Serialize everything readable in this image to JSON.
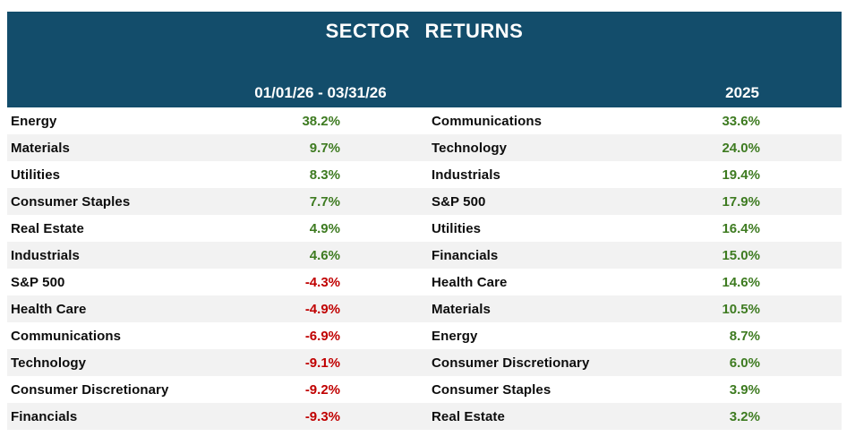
{
  "title": "SECTOR RETURNS",
  "colors": {
    "header_bg": "#134D6B",
    "header_text": "#FFFFFF",
    "positive": "#3E7B21",
    "negative": "#C00000",
    "row_alt": "#F2F2F2",
    "sector_text": "#0D0D0D",
    "page_bg": "#FFFFFF"
  },
  "columns": [
    {
      "period_label": "01/01/26 - 03/31/26",
      "rows": [
        {
          "sector": "Energy",
          "value": "38.2%",
          "dir": "pos"
        },
        {
          "sector": "Materials",
          "value": "9.7%",
          "dir": "pos"
        },
        {
          "sector": "Utilities",
          "value": "8.3%",
          "dir": "pos"
        },
        {
          "sector": "Consumer Staples",
          "value": "7.7%",
          "dir": "pos"
        },
        {
          "sector": "Real Estate",
          "value": "4.9%",
          "dir": "pos"
        },
        {
          "sector": "Industrials",
          "value": "4.6%",
          "dir": "pos"
        },
        {
          "sector": "S&P 500",
          "value": "-4.3%",
          "dir": "neg"
        },
        {
          "sector": "Health Care",
          "value": "-4.9%",
          "dir": "neg"
        },
        {
          "sector": "Communications",
          "value": "-6.9%",
          "dir": "neg"
        },
        {
          "sector": "Technology",
          "value": "-9.1%",
          "dir": "neg"
        },
        {
          "sector": "Consumer Discretionary",
          "value": "-9.2%",
          "dir": "neg"
        },
        {
          "sector": "Financials",
          "value": "-9.3%",
          "dir": "neg"
        }
      ]
    },
    {
      "period_label": "2025",
      "rows": [
        {
          "sector": "Communications",
          "value": "33.6%",
          "dir": "pos"
        },
        {
          "sector": "Technology",
          "value": "24.0%",
          "dir": "pos"
        },
        {
          "sector": "Industrials",
          "value": "19.4%",
          "dir": "pos"
        },
        {
          "sector": "S&P 500",
          "value": "17.9%",
          "dir": "pos"
        },
        {
          "sector": "Utilities",
          "value": "16.4%",
          "dir": "pos"
        },
        {
          "sector": "Financials",
          "value": "15.0%",
          "dir": "pos"
        },
        {
          "sector": "Health Care",
          "value": "14.6%",
          "dir": "pos"
        },
        {
          "sector": "Materials",
          "value": "10.5%",
          "dir": "pos"
        },
        {
          "sector": "Energy",
          "value": "8.7%",
          "dir": "pos"
        },
        {
          "sector": "Consumer Discretionary",
          "value": "6.0%",
          "dir": "pos"
        },
        {
          "sector": "Consumer Staples",
          "value": "3.9%",
          "dir": "pos"
        },
        {
          "sector": "Real Estate",
          "value": "3.2%",
          "dir": "pos"
        }
      ]
    }
  ],
  "chart_data": {
    "type": "table",
    "title": "SECTOR RETURNS",
    "column_headers": [
      "01/01/26 - 03/31/26",
      "2025"
    ],
    "series": [
      {
        "name": "01/01/26 - 03/31/26",
        "categories": [
          "Energy",
          "Materials",
          "Utilities",
          "Consumer Staples",
          "Real Estate",
          "Industrials",
          "S&P 500",
          "Health Care",
          "Communications",
          "Technology",
          "Consumer Discretionary",
          "Financials"
        ],
        "values": [
          38.2,
          9.7,
          8.3,
          7.7,
          4.9,
          4.6,
          -4.3,
          -4.9,
          -6.9,
          -9.1,
          -9.2,
          -9.3
        ]
      },
      {
        "name": "2025",
        "categories": [
          "Communications",
          "Technology",
          "Industrials",
          "S&P 500",
          "Utilities",
          "Financials",
          "Health Care",
          "Materials",
          "Energy",
          "Consumer Discretionary",
          "Consumer Staples",
          "Real Estate"
        ],
        "values": [
          33.6,
          24.0,
          19.4,
          17.9,
          16.4,
          15.0,
          14.6,
          10.5,
          8.7,
          6.0,
          3.9,
          3.2
        ]
      }
    ],
    "value_unit": "%",
    "positive_color": "#3E7B21",
    "negative_color": "#C00000"
  }
}
